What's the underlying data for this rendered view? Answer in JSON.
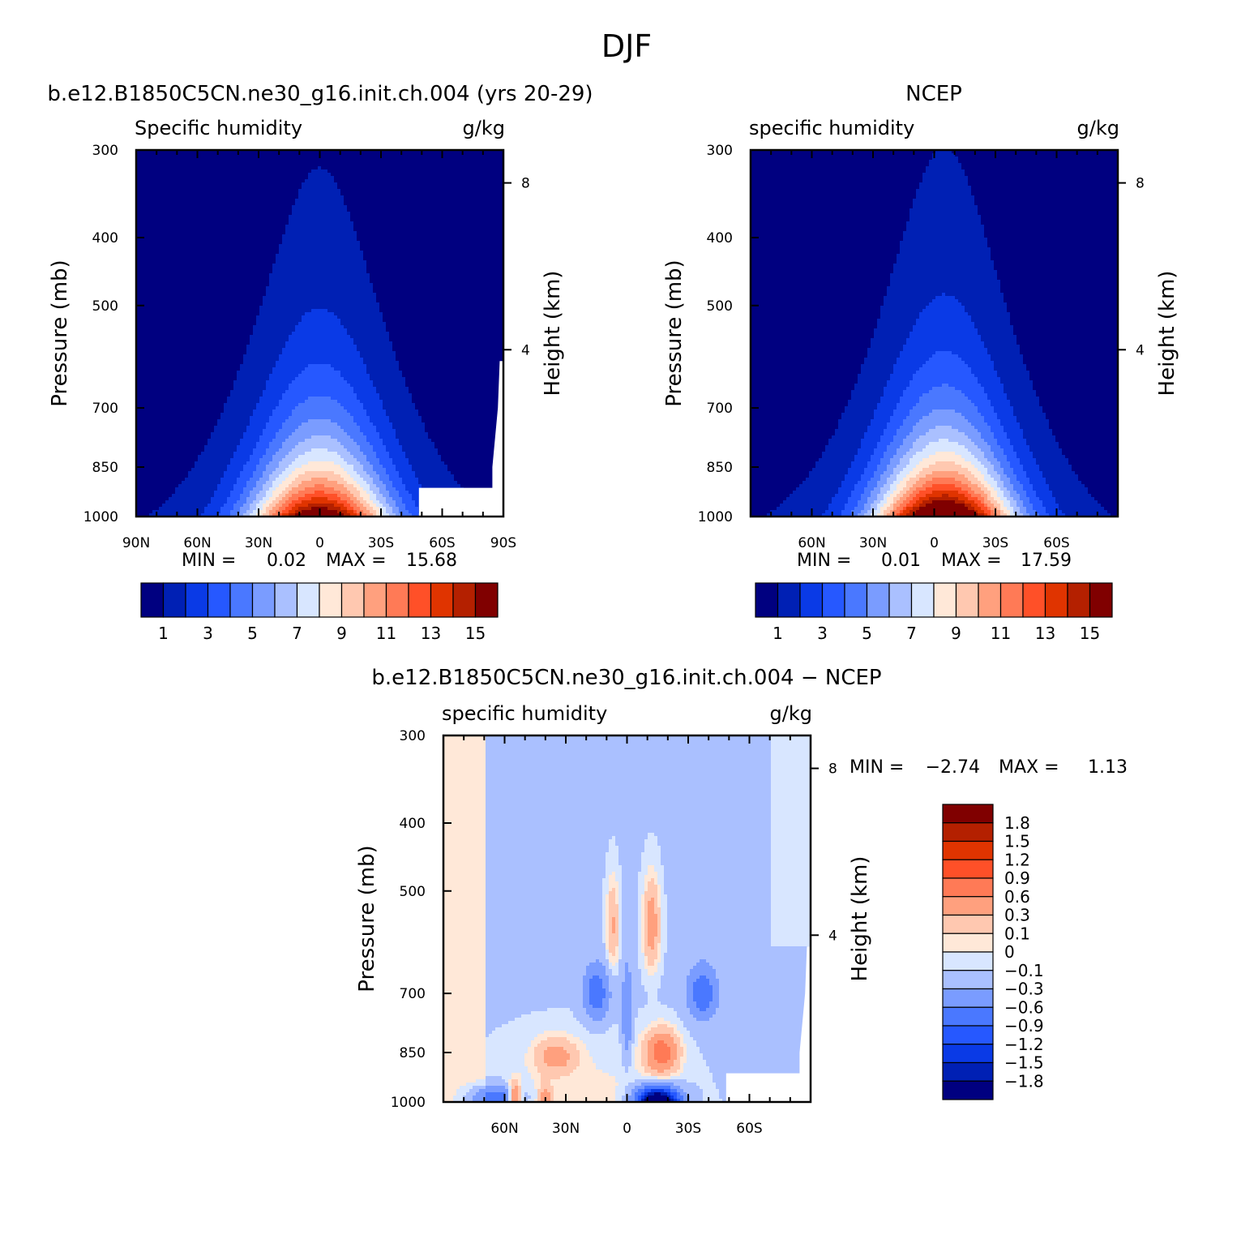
{
  "figure_title": "DJF",
  "colors": {
    "abs_levels": [
      "#000080",
      "#0020b4",
      "#0a3ae6",
      "#2658ff",
      "#4a78ff",
      "#7a9cff",
      "#aac0ff",
      "#d8e6ff",
      "#ffe8d8",
      "#ffc8b0",
      "#ffa07e",
      "#ff7a56",
      "#ff5028",
      "#e03400",
      "#b42000",
      "#800000"
    ],
    "diff_levels": [
      "#000080",
      "#0020b4",
      "#0a3ae6",
      "#2658ff",
      "#4a78ff",
      "#7a9cff",
      "#aac0ff",
      "#d8e6ff",
      "#ffe8d8",
      "#ffc8b0",
      "#ffa07e",
      "#ff7a56",
      "#ff5028",
      "#e03400",
      "#b42000",
      "#800000"
    ]
  },
  "chart_data": [
    {
      "type": "heatmap",
      "title": "b.e12.B1850C5CN.ne30_g16.init.ch.004 (yrs 20-29)",
      "left_label": "Specific humidity",
      "right_label": "g/kg",
      "ylabel": "Pressure (mb)",
      "ylabel_right": "Height (km)",
      "y_ticks": [
        "300",
        "400",
        "500",
        "700",
        "850",
        "1000"
      ],
      "y_right_ticks": [
        "8",
        "4"
      ],
      "x_ticks": [
        "90N",
        "60N",
        "30N",
        "0",
        "30S",
        "60S",
        "90S"
      ],
      "min_label": "MIN =",
      "min_value": "0.02",
      "max_label": "MAX =",
      "max_value": "15.68",
      "colorbar_labels": [
        "1",
        "3",
        "5",
        "7",
        "9",
        "11",
        "13",
        "15"
      ],
      "ylim": [
        1000,
        300
      ],
      "xlim": [
        90,
        -90
      ],
      "field_max": 15.68,
      "field_peak_latitude": 0,
      "surface_mask": "right"
    },
    {
      "type": "heatmap",
      "title": "NCEP",
      "left_label": "specific humidity",
      "right_label": "g/kg",
      "ylabel": "Pressure (mb)",
      "ylabel_right": "Height (km)",
      "y_ticks": [
        "300",
        "400",
        "500",
        "700",
        "850",
        "1000"
      ],
      "y_right_ticks": [
        "8",
        "4"
      ],
      "x_ticks": [
        "60N",
        "30N",
        "0",
        "30S",
        "60S"
      ],
      "min_label": "MIN =",
      "min_value": "0.01",
      "max_label": "MAX =",
      "max_value": "17.59",
      "colorbar_labels": [
        "1",
        "3",
        "5",
        "7",
        "9",
        "11",
        "13",
        "15"
      ],
      "ylim": [
        1000,
        300
      ],
      "xlim": [
        90,
        -90
      ],
      "field_max": 17.59,
      "field_peak_latitude": -5,
      "surface_mask": "none"
    },
    {
      "type": "heatmap",
      "title": "b.e12.B1850C5CN.ne30_g16.init.ch.004 − NCEP",
      "left_label": "specific humidity",
      "right_label": "g/kg",
      "ylabel": "Pressure (mb)",
      "ylabel_right": "Height (km)",
      "y_ticks": [
        "300",
        "400",
        "500",
        "700",
        "850",
        "1000"
      ],
      "y_right_ticks": [
        "8",
        "4"
      ],
      "x_ticks": [
        "60N",
        "30N",
        "0",
        "30S",
        "60S"
      ],
      "min_label": "MIN =",
      "min_value": "−2.74",
      "max_label": "MAX =",
      "max_value": "1.13",
      "colorbar_labels": [
        "1.8",
        "1.5",
        "1.2",
        "0.9",
        "0.6",
        "0.3",
        "0.1",
        "0",
        "−0.1",
        "−0.3",
        "−0.6",
        "−0.9",
        "−1.2",
        "−1.5",
        "−1.8"
      ],
      "ylim": [
        1000,
        300
      ],
      "xlim": [
        90,
        -90
      ],
      "surface_mask": "right"
    }
  ]
}
